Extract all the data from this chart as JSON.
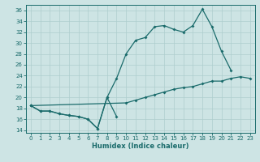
{
  "xlabel": "Humidex (Indice chaleur)",
  "bg_color": "#cde4e4",
  "grid_color": "#aecece",
  "line_color": "#1a6b6b",
  "xlim": [
    -0.5,
    23.5
  ],
  "ylim": [
    13.5,
    37
  ],
  "yticks": [
    14,
    16,
    18,
    20,
    22,
    24,
    26,
    28,
    30,
    32,
    34,
    36
  ],
  "xticks": [
    0,
    1,
    2,
    3,
    4,
    5,
    6,
    7,
    8,
    9,
    10,
    11,
    12,
    13,
    14,
    15,
    16,
    17,
    18,
    19,
    20,
    21,
    22,
    23
  ],
  "line_low_x": [
    0,
    1,
    2,
    3,
    4,
    5,
    6,
    7,
    8,
    9
  ],
  "line_low_y": [
    18.5,
    17.5,
    17.5,
    17.0,
    16.7,
    16.5,
    16.0,
    14.3,
    20.0,
    16.5
  ],
  "line_high_x": [
    0,
    1,
    2,
    3,
    4,
    5,
    6,
    7,
    8,
    9,
    10,
    11,
    12,
    13,
    14,
    15,
    16,
    17,
    18,
    19,
    20,
    21
  ],
  "line_high_y": [
    18.5,
    17.5,
    17.5,
    17.0,
    16.7,
    16.5,
    16.0,
    14.3,
    20.0,
    23.5,
    28.0,
    30.5,
    31.0,
    33.0,
    33.2,
    32.5,
    32.0,
    33.2,
    36.2,
    33.0,
    28.5,
    25.0
  ],
  "line_diag_x": [
    0,
    10,
    11,
    12,
    13,
    14,
    15,
    16,
    17,
    18,
    19,
    20,
    21,
    22,
    23
  ],
  "line_diag_y": [
    18.5,
    19.0,
    19.5,
    20.0,
    20.5,
    21.0,
    21.5,
    21.8,
    22.0,
    22.5,
    23.0,
    23.0,
    23.5,
    23.8,
    23.5
  ]
}
